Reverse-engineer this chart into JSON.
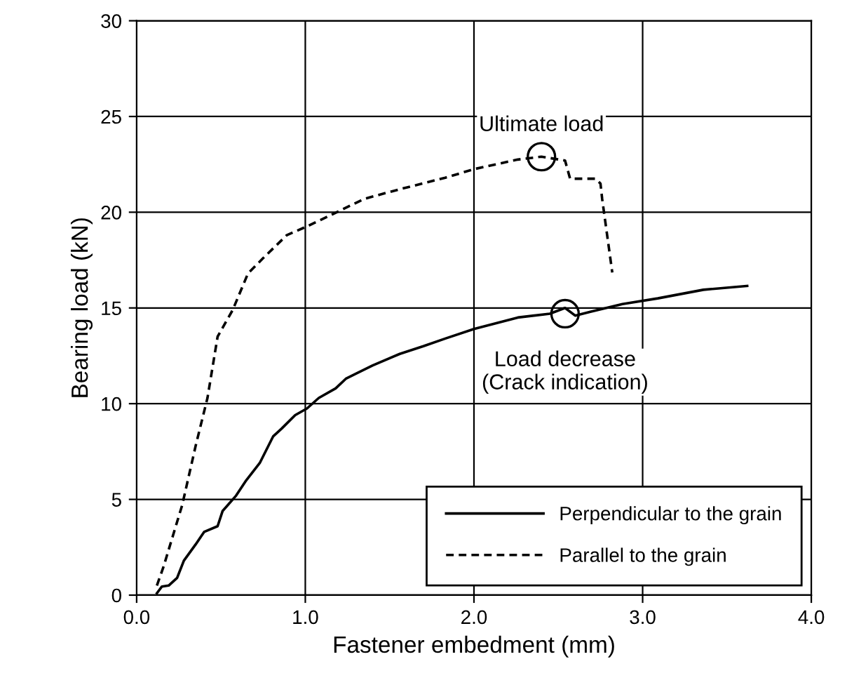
{
  "chart_data": {
    "type": "line",
    "xlabel": "Fastener embedment (mm)",
    "ylabel": "Bearing load (kN)",
    "xlim": [
      0,
      4
    ],
    "ylim": [
      0,
      30
    ],
    "xticks": [
      {
        "value": 0,
        "label": "0.0"
      },
      {
        "value": 1,
        "label": "1.0"
      },
      {
        "value": 2,
        "label": "2.0"
      },
      {
        "value": 3,
        "label": "3.0"
      },
      {
        "value": 4,
        "label": "4.0"
      }
    ],
    "yticks": [
      0,
      5,
      10,
      15,
      20,
      25,
      30
    ],
    "grid": true,
    "legend": "bottom right",
    "marker": "none",
    "series": [
      {
        "name": "Perpendicular to the grain",
        "color": "#000000",
        "line_style": "solid",
        "x": [
          0.12,
          0.15,
          0.19,
          0.24,
          0.28,
          0.35,
          0.4,
          0.48,
          0.51,
          0.59,
          0.65,
          0.73,
          0.81,
          0.86,
          0.94,
          1.01,
          1.08,
          1.18,
          1.24,
          1.4,
          1.56,
          1.7,
          1.83,
          2.0,
          2.26,
          2.45,
          2.54,
          2.6,
          2.69,
          2.88,
          3.09,
          3.36,
          3.62
        ],
        "values": [
          0.1,
          0.45,
          0.5,
          0.9,
          1.8,
          2.65,
          3.3,
          3.6,
          4.4,
          5.2,
          6.0,
          6.9,
          8.3,
          8.7,
          9.4,
          9.75,
          10.3,
          10.8,
          11.3,
          12.0,
          12.6,
          13.0,
          13.4,
          13.9,
          14.5,
          14.7,
          15.0,
          14.6,
          14.8,
          15.2,
          15.5,
          15.95,
          16.15
        ]
      },
      {
        "name": "Parallel to the grain",
        "color": "#000000",
        "line_style": "dashed",
        "x": [
          0.12,
          0.16,
          0.27,
          0.35,
          0.42,
          0.48,
          0.57,
          0.66,
          0.75,
          0.89,
          1.02,
          1.21,
          1.35,
          1.56,
          1.83,
          2.0,
          2.26,
          2.4,
          2.54,
          2.57,
          2.72,
          2.75,
          2.76,
          2.82
        ],
        "values": [
          0.5,
          1.5,
          4.7,
          7.8,
          10.3,
          13.5,
          14.9,
          16.8,
          17.6,
          18.8,
          19.3,
          20.1,
          20.7,
          21.2,
          21.8,
          22.25,
          22.75,
          22.9,
          22.7,
          21.75,
          21.75,
          21.5,
          20.7,
          16.85
        ]
      }
    ],
    "annotations": [
      {
        "text": "Ultimate load",
        "x": 2.4,
        "y": 22.9
      },
      {
        "text": "Load decrease\n(Crack indication)",
        "x": 2.54,
        "y": 14.7
      }
    ]
  }
}
